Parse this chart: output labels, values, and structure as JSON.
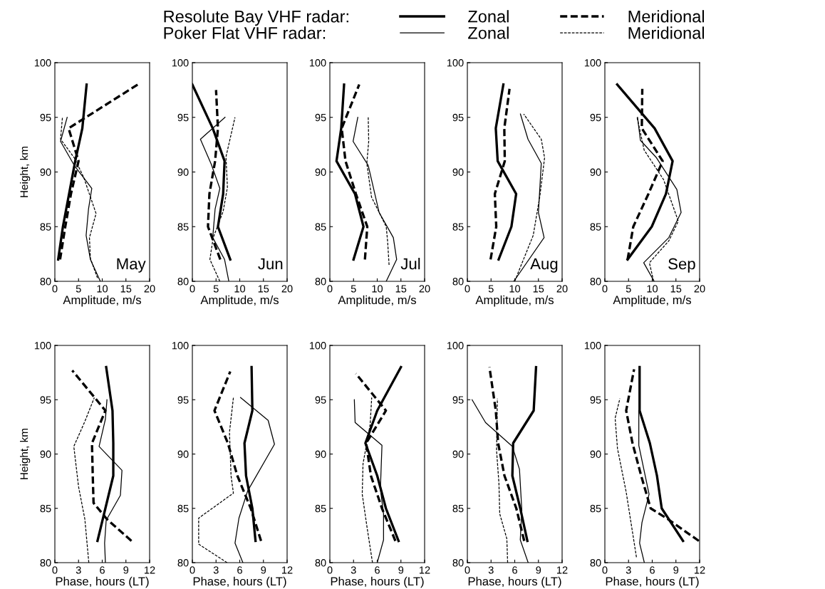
{
  "chart_data": [
    {
      "type": "line",
      "xlabel": "Amplitude, m/s",
      "ylabel": "Height, km",
      "xlim": [
        0,
        20
      ],
      "ylim": [
        80,
        100
      ],
      "xticks": [
        0,
        5,
        10,
        15,
        20
      ],
      "yticks": [
        80,
        85,
        90,
        95,
        100
      ],
      "grid": false,
      "legend": "top",
      "line_style": "solid",
      "annotations": [
        "May",
        "Resolute Bay VHF radar:",
        "Poker Flat VHF radar:"
      ],
      "series": [
        {
          "name": "Zonal",
          "color": "#000000",
          "x": [
            0.7,
            1.7,
            3.0,
            4.3,
            5.8,
            6.7
          ],
          "values": [
            82,
            85,
            88,
            91,
            94,
            98
          ]
        },
        {
          "name": "Meridional",
          "color": "#000000",
          "line_style": "dashed",
          "x": [
            1.1,
            2.2,
            3.4,
            5.0,
            2.9,
            17.5
          ],
          "values": [
            82,
            85,
            88,
            91,
            94,
            98
          ]
        },
        {
          "name": "Zonal",
          "color": "#000000",
          "x": [
            9.6,
            7.5,
            6.6,
            7.1,
            7.8,
            4.1,
            1.2,
            2.6
          ],
          "values": [
            80,
            82,
            84.2,
            86.6,
            88.5,
            90.6,
            92.8,
            95
          ]
        },
        {
          "name": "Meridional",
          "color": "#000000",
          "line_style": "dashed",
          "x": [
            9.0,
            7.5,
            7.3,
            8.7,
            6.1,
            4.1,
            1.2,
            1.6
          ],
          "values": [
            80.3,
            82.1,
            84,
            86.2,
            89.5,
            91.3,
            93,
            95
          ]
        }
      ]
    },
    {
      "type": "line",
      "xlabel": "Phase, hours (LT)",
      "ylabel": "Height, km",
      "xlim": [
        0,
        12
      ],
      "ylim": [
        80,
        100
      ],
      "xticks": [
        0,
        3,
        6,
        9,
        12
      ],
      "yticks": [
        80,
        85,
        90,
        95,
        100
      ],
      "grid": false,
      "series": [
        {
          "color": "#000000",
          "x": [
            5.4,
            6.4,
            7.4,
            7.4,
            7.3,
            6.5
          ],
          "values": [
            82,
            85,
            88,
            91,
            94,
            98
          ]
        },
        {
          "color": "#000000",
          "line_style": "dashed",
          "x": [
            9.7,
            6.6,
            4.9,
            4.8,
            4.7,
            6.4,
            2.2
          ],
          "values": [
            82,
            84,
            85.5,
            88,
            91,
            94,
            97.7
          ]
        },
        {
          "color": "#000000",
          "x": [
            6.4,
            6.3,
            6.5,
            8.3,
            8.5,
            5.6,
            6.4,
            6.6
          ],
          "values": [
            80,
            81.8,
            83.9,
            86.2,
            88.5,
            90.7,
            93.2,
            95
          ]
        },
        {
          "color": "#000000",
          "line_style": "dashed",
          "x": [
            4.3,
            3.8,
            3.0,
            2.4,
            3.8,
            5.0
          ],
          "values": [
            80,
            84,
            87,
            90.7,
            93,
            95.2
          ]
        }
      ]
    },
    {
      "type": "line",
      "xlabel": "Amplitude, m/s",
      "xlim": [
        0,
        20
      ],
      "ylim": [
        80,
        100
      ],
      "xticks": [
        0,
        5,
        10,
        15,
        20
      ],
      "yticks": [
        80,
        85,
        90,
        95,
        100
      ],
      "grid": false,
      "annotations": [
        "Jun"
      ],
      "series": [
        {
          "color": "#000000",
          "x": [
            8.0,
            5.4,
            6.5,
            6.8,
            4.3,
            0
          ],
          "values": [
            82,
            85,
            88,
            91,
            94,
            98
          ]
        },
        {
          "color": "#000000",
          "line_style": "dashed",
          "x": [
            5.9,
            3.3,
            3.6,
            4.8,
            5.4,
            5.0
          ],
          "values": [
            82,
            85,
            88,
            91,
            94,
            97.5
          ]
        },
        {
          "color": "#000000",
          "x": [
            7.7,
            6.8,
            4.3,
            4.8,
            5.8,
            4.0,
            1.7,
            6.9
          ],
          "values": [
            80,
            82,
            84,
            86.6,
            88.5,
            90.7,
            93,
            95
          ]
        },
        {
          "color": "#000000",
          "line_style": "dashed",
          "x": [
            5.8,
            3.7,
            4.4,
            6.5,
            7.4,
            7.1,
            9.0
          ],
          "values": [
            80,
            82,
            84,
            86.4,
            88.6,
            91.4,
            95
          ]
        }
      ]
    },
    {
      "type": "line",
      "xlabel": "Phase, hours (LT)",
      "xlim": [
        0,
        12
      ],
      "ylim": [
        80,
        100
      ],
      "xticks": [
        0,
        3,
        6,
        9,
        12
      ],
      "yticks": [
        80,
        85,
        90,
        95,
        100
      ],
      "grid": false,
      "series": [
        {
          "color": "#000000",
          "x": [
            8.0,
            7.6,
            6.8,
            6.6,
            7.6,
            7.5
          ],
          "values": [
            82,
            85,
            88,
            91,
            94,
            98
          ]
        },
        {
          "color": "#000000",
          "line_style": "dashed",
          "x": [
            8.7,
            7.4,
            5.7,
            4.5,
            2.8,
            4.8
          ],
          "values": [
            82,
            85,
            88,
            91,
            94,
            97.6
          ]
        },
        {
          "color": "#000000",
          "x": [
            6.4,
            5.4,
            5.9,
            7.0,
            10.4,
            9.6,
            6.1
          ],
          "values": [
            80,
            81.8,
            84.1,
            86.6,
            90.9,
            93.1,
            95.2
          ]
        },
        {
          "color": "#000000",
          "line_style": "dashed",
          "x": [
            4.4,
            0.8,
            0.8,
            5.2,
            4.9,
            4.7,
            5.2
          ],
          "values": [
            80,
            81.7,
            84.1,
            86.4,
            88,
            92,
            95.2
          ]
        }
      ]
    },
    {
      "type": "line",
      "xlabel": "Amplitude, m/s",
      "xlim": [
        0,
        20
      ],
      "ylim": [
        80,
        100
      ],
      "xticks": [
        0,
        5,
        10,
        15,
        20
      ],
      "yticks": [
        80,
        85,
        90,
        95,
        100
      ],
      "grid": false,
      "annotations": [
        "Jul"
      ],
      "series": [
        {
          "color": "#000000",
          "x": [
            5.0,
            7.1,
            5.3,
            1.4,
            2.4,
            3.0
          ],
          "values": [
            82,
            85,
            88,
            91,
            94,
            98
          ]
        },
        {
          "color": "#000000",
          "line_style": "dashed",
          "x": [
            7.4,
            7.9,
            5.5,
            3.3,
            2.5,
            6.2
          ],
          "values": [
            82,
            85,
            88,
            91,
            94,
            98
          ]
        },
        {
          "color": "#000000",
          "x": [
            11.9,
            14.1,
            13.4,
            10.4,
            8.1,
            4.9,
            5.9
          ],
          "values": [
            80,
            82,
            84,
            86.3,
            90.6,
            92.8,
            95
          ]
        },
        {
          "color": "#000000",
          "line_style": "dashed",
          "x": [
            12.5,
            12.2,
            11.9,
            8.8,
            7.8,
            8.2,
            8.1
          ],
          "values": [
            81.5,
            83.6,
            85,
            87.7,
            90.8,
            92.8,
            95
          ]
        }
      ]
    },
    {
      "type": "line",
      "xlabel": "Phase, hours (LT)",
      "xlim": [
        0,
        12
      ],
      "ylim": [
        80,
        100
      ],
      "xticks": [
        0,
        3,
        6,
        9,
        12
      ],
      "yticks": [
        80,
        85,
        90,
        95,
        100
      ],
      "grid": false,
      "series": [
        {
          "color": "#000000",
          "x": [
            8.7,
            7.1,
            6.0,
            4.5,
            6.0,
            9.0
          ],
          "values": [
            82,
            85,
            88,
            91,
            94,
            98
          ]
        },
        {
          "color": "#000000",
          "line_style": "dashed",
          "x": [
            8.3,
            6.6,
            5.2,
            4.6,
            7.1,
            3.3
          ],
          "values": [
            82,
            85,
            88,
            91,
            94,
            97.4
          ]
        },
        {
          "color": "#000000",
          "x": [
            6.0,
            6.8,
            6.8,
            6.4,
            6.6,
            3.2,
            3.1
          ],
          "values": [
            80,
            82.1,
            84.5,
            86.8,
            90.8,
            92.9,
            95
          ]
        },
        {
          "color": "#000000",
          "line_style": "dashed",
          "x": [
            5.4,
            4.7,
            4.1,
            4.2,
            5.1,
            5.3
          ],
          "values": [
            80,
            83.3,
            86.3,
            89.1,
            92.7,
            95.2
          ]
        }
      ]
    },
    {
      "type": "line",
      "xlabel": "Amplitude, m/s",
      "xlim": [
        0,
        20
      ],
      "ylim": [
        80,
        100
      ],
      "xticks": [
        0,
        5,
        10,
        15,
        20
      ],
      "yticks": [
        80,
        85,
        90,
        95,
        100
      ],
      "grid": false,
      "annotations": [
        "Aug"
      ],
      "series": [
        {
          "color": "#000000",
          "x": [
            6.6,
            9.3,
            10.3,
            6.4,
            6.0,
            7.6
          ],
          "values": [
            82,
            85,
            88,
            91,
            94,
            98
          ]
        },
        {
          "color": "#000000",
          "line_style": "dashed",
          "x": [
            4.9,
            6.1,
            5.8,
            7.9,
            7.8,
            8.9
          ],
          "values": [
            82,
            85,
            88,
            91,
            94,
            97.6
          ]
        },
        {
          "color": "#000000",
          "x": [
            9.8,
            16.2,
            15.0,
            15.6,
            12.8,
            11.2
          ],
          "values": [
            80,
            84,
            86.3,
            90.8,
            93,
            95.3
          ]
        },
        {
          "color": "#000000",
          "line_style": "dashed",
          "x": [
            10.0,
            11.1,
            13.9,
            15.3,
            16.3,
            15.6,
            11.9
          ],
          "values": [
            80,
            81.2,
            84.2,
            87.8,
            91.3,
            93,
            95.3
          ]
        }
      ]
    },
    {
      "type": "line",
      "xlabel": "Phase, hours (LT)",
      "xlim": [
        0,
        12
      ],
      "ylim": [
        80,
        100
      ],
      "xticks": [
        0,
        3,
        6,
        9,
        12
      ],
      "yticks": [
        80,
        85,
        90,
        95,
        100
      ],
      "grid": false,
      "series": [
        {
          "color": "#000000",
          "x": [
            7.6,
            6.7,
            5.7,
            5.8,
            8.4,
            8.7
          ],
          "values": [
            82,
            85,
            88,
            91,
            94,
            98
          ]
        },
        {
          "color": "#000000",
          "line_style": "dashed",
          "x": [
            7.2,
            6.2,
            4.7,
            3.9,
            3.6,
            2.8
          ],
          "values": [
            82,
            85,
            88,
            91,
            94,
            98
          ]
        },
        {
          "color": "#000000",
          "x": [
            7.7,
            6.7,
            6.9,
            6.6,
            5.7,
            2.3,
            0.6
          ],
          "values": [
            80,
            82.1,
            84.8,
            88.6,
            90.7,
            92.9,
            95
          ]
        },
        {
          "color": "#000000",
          "line_style": "dashed",
          "x": [
            5.1,
            5.0,
            4.1,
            4.0,
            3.7,
            3.8
          ],
          "values": [
            80,
            82.2,
            84.5,
            87.3,
            90.3,
            95.1
          ]
        }
      ]
    },
    {
      "type": "line",
      "xlabel": "Amplitude, m/s",
      "xlim": [
        0,
        20
      ],
      "ylim": [
        80,
        100
      ],
      "xticks": [
        0,
        5,
        10,
        15,
        20
      ],
      "yticks": [
        80,
        85,
        90,
        95,
        100
      ],
      "grid": false,
      "annotations": [
        "Sep"
      ],
      "series": [
        {
          "color": "#000000",
          "x": [
            4.8,
            9.9,
            12.9,
            14.3,
            10.5,
            2.6
          ],
          "values": [
            82,
            85,
            88,
            91,
            94,
            98
          ]
        },
        {
          "color": "#000000",
          "line_style": "dashed",
          "x": [
            4.8,
            6.0,
            9.2,
            12.2,
            7.8,
            7.9
          ],
          "values": [
            82,
            85,
            88,
            91,
            94,
            97.6
          ]
        },
        {
          "color": "#000000",
          "x": [
            10.4,
            8.2,
            13.5,
            16.1,
            15.2,
            10.9,
            7.5,
            6.9
          ],
          "values": [
            80,
            81.7,
            84,
            86.3,
            88.4,
            91.3,
            92.9,
            95
          ]
        },
        {
          "color": "#000000",
          "line_style": "dashed",
          "x": [
            10.3,
            9.4,
            13.5,
            15.5,
            12.4,
            8.3,
            6.8
          ],
          "values": [
            80,
            81.7,
            83.7,
            85.5,
            89.3,
            92,
            95
          ]
        }
      ]
    },
    {
      "type": "line",
      "xlabel": "Phase, hours (LT)",
      "xlim": [
        0,
        12
      ],
      "ylim": [
        80,
        100
      ],
      "xticks": [
        0,
        3,
        6,
        9,
        12
      ],
      "yticks": [
        80,
        85,
        90,
        95,
        100
      ],
      "grid": false,
      "series": [
        {
          "color": "#000000",
          "x": [
            9.9,
            7.2,
            6.6,
            5.7,
            4.4,
            4.4
          ],
          "values": [
            82,
            85,
            88,
            91,
            94,
            98
          ]
        },
        {
          "color": "#000000",
          "line_style": "dashed",
          "x": [
            11.9,
            8.0,
            5.8,
            4.6,
            3.5,
            2.7,
            3.7
          ],
          "values": [
            82,
            84,
            85,
            88,
            91,
            94,
            97.8
          ]
        },
        {
          "color": "#000000",
          "x": [
            5.0,
            4.4,
            4.7,
            5.6,
            4.3,
            4.3
          ],
          "values": [
            80,
            81.8,
            83.7,
            86.3,
            90.8,
            94
          ]
        },
        {
          "color": "#000000",
          "line_style": "dashed",
          "x": [
            4.0,
            2.7,
            1.6,
            1.3,
            1.9
          ],
          "values": [
            80.5,
            86.5,
            90.5,
            93.3,
            95.1
          ]
        }
      ]
    }
  ]
}
